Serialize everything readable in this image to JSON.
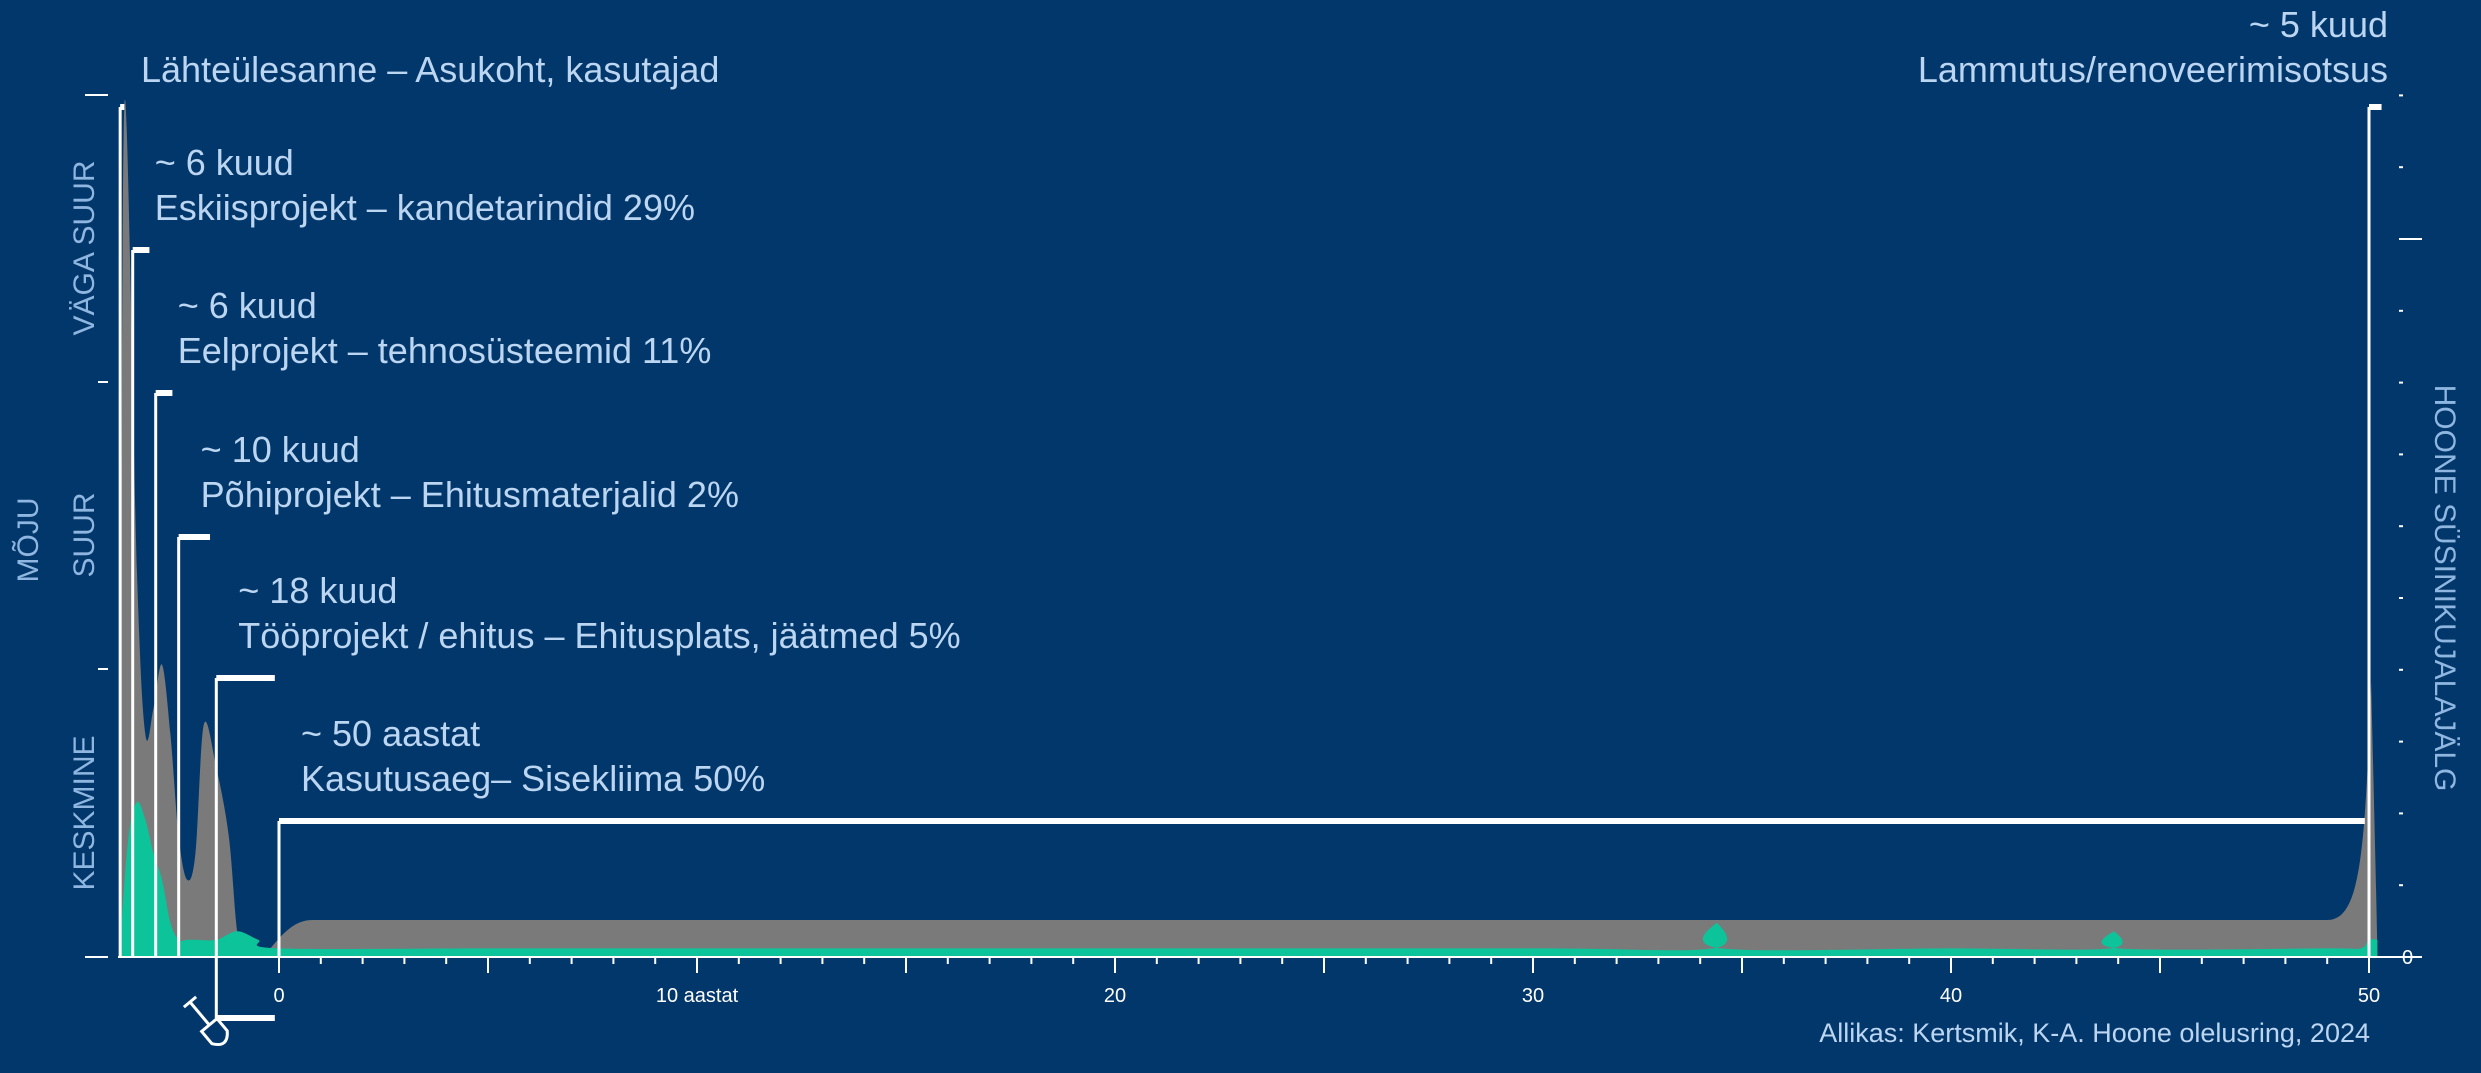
{
  "chart_data": {
    "type": "area",
    "ylabel_left": "MÕJU",
    "ylabel_right": "HOONE SÜSINIKUJALAJÄLG",
    "impact_levels": [
      "KESKMINE",
      "SUUR",
      "VÄGA SUUR"
    ],
    "x_tick_labels": [
      "0",
      "10 aastat",
      "20",
      "30",
      "40",
      "50"
    ],
    "x_ticks": [
      0,
      10,
      20,
      30,
      40,
      50
    ],
    "xlim": [
      -3.8,
      50.2
    ],
    "ylim": [
      0,
      100
    ],
    "right_axis_label": "0",
    "source": "Allikas: Kertsmik, K-A. Hoone olelusring, 2024",
    "phases": [
      {
        "duration": "",
        "name": "Lähteülesanne – Asukoht, kasutajad",
        "start": -3.8,
        "end": -3.7
      },
      {
        "duration": "~ 6 kuud",
        "name": "Eskiisprojekt – kandetarindid 29%",
        "start": -3.5,
        "end": -3.1
      },
      {
        "duration": "~ 6 kuud",
        "name": "Eelprojekt – tehnosüsteemid 11%",
        "start": -2.95,
        "end": -2.55
      },
      {
        "duration": "~ 10 kuud",
        "name": "Põhiprojekt – Ehitusmaterjalid 2%",
        "start": -2.4,
        "end": -1.65
      },
      {
        "duration": "~ 18 kuud",
        "name": "Tööprojekt / ehitus – Ehitusplats, jäätmed 5%",
        "start": -1.5,
        "end": -0.1
      },
      {
        "duration": "~ 50 aastat",
        "name": "Kasutusaeg– Sisekliima 50%",
        "start": 0,
        "end": 49.9
      },
      {
        "duration": "~ 5 kuud",
        "name": "Lammutus/renoveerimisotsus",
        "start": 50,
        "end": 50.3
      }
    ],
    "series": [
      {
        "name": "",
        "color": "#7a7a7a",
        "x": [
          -3.8,
          -3.7,
          -3.4,
          -3.2,
          -3.0,
          -2.8,
          -2.6,
          -2.4,
          -2.2,
          -2.0,
          -1.8,
          -1.5,
          -1.2,
          -1.0,
          -0.8,
          -0.5,
          -0.2,
          0,
          0.5,
          10,
          20,
          30,
          40,
          49,
          49.5,
          49.8,
          50,
          50.2
        ],
        "values": [
          2,
          99,
          45,
          26,
          29,
          34,
          26,
          14,
          9,
          12,
          27,
          22,
          14,
          3,
          1,
          0,
          0,
          0,
          0,
          0,
          0,
          0,
          0,
          0,
          0,
          0,
          0,
          0
        ]
      },
      {
        "name": "",
        "color": "#0cc39a",
        "x": [
          -3.8,
          -3.6,
          -3.4,
          -3.2,
          -3.0,
          -2.8,
          -2.6,
          -2.4,
          -2.2,
          -2.0,
          -1.5,
          -1.0,
          -0.5,
          0,
          5,
          10,
          20,
          30,
          34.3,
          34.4,
          34.5,
          40,
          43.8,
          43.9,
          44,
          49,
          49.8,
          50,
          50.2
        ],
        "values": [
          2,
          14,
          18,
          16,
          12,
          9,
          4,
          2,
          2,
          2,
          2,
          3,
          2,
          1,
          1,
          1,
          1,
          1,
          1,
          4,
          1,
          1,
          1,
          3,
          1,
          1,
          1,
          2,
          2
        ]
      }
    ],
    "colors": {
      "background": "#02376b",
      "label_text": "#bcd6f2",
      "axis_category": "#8fb6e0",
      "phase_line": "#ffffff"
    }
  }
}
